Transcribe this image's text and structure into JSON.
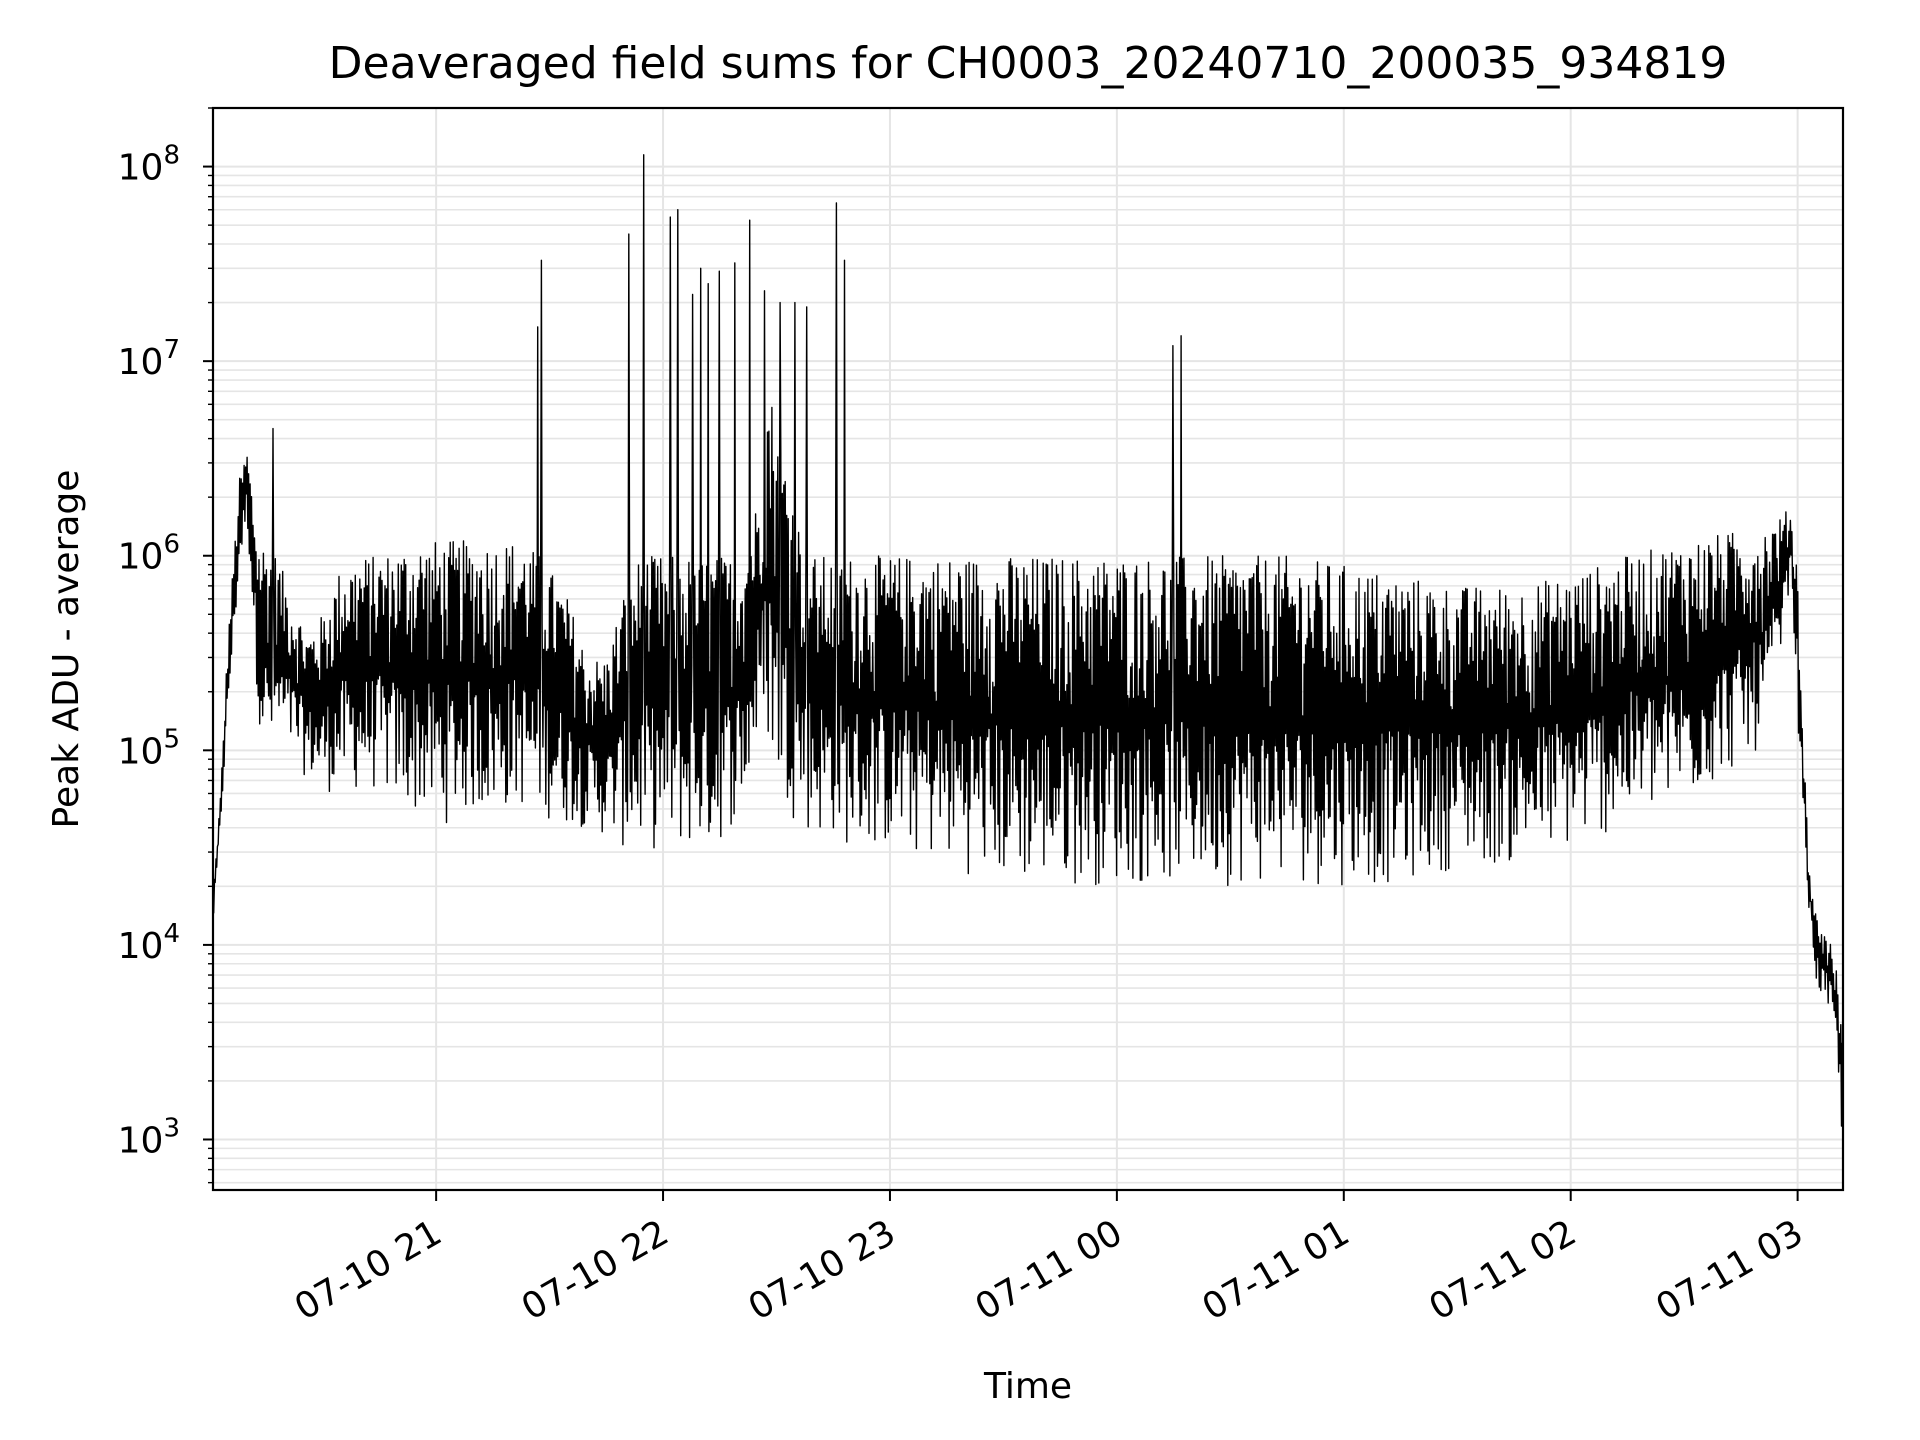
{
  "chart_data": {
    "type": "line",
    "title": "Deaveraged field sums for CH0003_20240710_200035_934819",
    "xlabel": "Time",
    "ylabel": "Peak ADU - average",
    "yscale": "log",
    "ylim": [
      550,
      200000000
    ],
    "xlim": [
      "2024-07-10 20:01",
      "2024-07-11 03:12"
    ],
    "grid": true,
    "line_color": "#000000",
    "grid_color": "#e5e5e5",
    "x_ticks": [
      {
        "value": "2024-07-10 21:00",
        "label": "07-10 21"
      },
      {
        "value": "2024-07-10 22:00",
        "label": "07-10 22"
      },
      {
        "value": "2024-07-10 23:00",
        "label": "07-10 23"
      },
      {
        "value": "2024-07-11 00:00",
        "label": "07-11 00"
      },
      {
        "value": "2024-07-11 01:00",
        "label": "07-11 01"
      },
      {
        "value": "2024-07-11 02:00",
        "label": "07-11 02"
      },
      {
        "value": "2024-07-11 03:00",
        "label": "07-11 03"
      }
    ],
    "y_ticks": [
      {
        "value": 1000,
        "base": "10",
        "exp": "3"
      },
      {
        "value": 10000,
        "base": "10",
        "exp": "4"
      },
      {
        "value": 100000,
        "base": "10",
        "exp": "5"
      },
      {
        "value": 1000000,
        "base": "10",
        "exp": "6"
      },
      {
        "value": 10000000,
        "base": "10",
        "exp": "7"
      },
      {
        "value": 100000000,
        "base": "10",
        "exp": "8"
      }
    ],
    "series": [
      {
        "x": [
          "2024-07-10 20:01",
          "2024-07-10 20:03",
          "2024-07-10 20:05",
          "2024-07-10 20:08",
          "2024-07-10 20:10",
          "2024-07-10 20:13",
          "2024-07-10 20:15",
          "2024-07-10 20:18",
          "2024-07-10 20:22",
          "2024-07-10 20:26",
          "2024-07-10 20:30",
          "2024-07-10 20:35",
          "2024-07-10 20:40",
          "2024-07-10 20:45",
          "2024-07-10 20:50",
          "2024-07-10 20:55",
          "2024-07-10 21:00",
          "2024-07-10 21:08",
          "2024-07-10 21:15",
          "2024-07-10 21:22",
          "2024-07-10 21:28",
          "2024-07-10 21:35",
          "2024-07-10 21:40",
          "2024-07-10 21:45",
          "2024-07-10 21:50",
          "2024-07-10 21:54",
          "2024-07-10 21:58",
          "2024-07-10 22:02",
          "2024-07-10 22:06",
          "2024-07-10 22:10",
          "2024-07-10 22:14",
          "2024-07-10 22:18",
          "2024-07-10 22:22",
          "2024-07-10 22:25",
          "2024-07-10 22:28",
          "2024-07-10 22:30",
          "2024-07-10 22:33",
          "2024-07-10 22:36",
          "2024-07-10 22:40",
          "2024-07-10 22:45",
          "2024-07-10 22:50",
          "2024-07-10 22:55",
          "2024-07-10 23:00",
          "2024-07-10 23:15",
          "2024-07-10 23:30",
          "2024-07-10 23:45",
          "2024-07-11 00:00",
          "2024-07-11 00:15",
          "2024-07-11 00:30",
          "2024-07-11 00:45",
          "2024-07-11 01:00",
          "2024-07-11 01:15",
          "2024-07-11 01:30",
          "2024-07-11 01:45",
          "2024-07-11 02:00",
          "2024-07-11 02:15",
          "2024-07-11 02:30",
          "2024-07-11 02:40",
          "2024-07-11 02:50",
          "2024-07-11 02:56",
          "2024-07-11 02:58",
          "2024-07-11 03:00",
          "2024-07-11 03:01",
          "2024-07-11 03:03",
          "2024-07-11 03:05",
          "2024-07-11 03:07",
          "2024-07-11 03:09",
          "2024-07-11 03:10",
          "2024-07-11 03:11",
          "2024-07-11 03:12"
        ],
        "low": [
          12000,
          40000,
          150000,
          800000,
          1500000,
          150000,
          80000,
          100000,
          90000,
          70000,
          60000,
          60000,
          60000,
          60000,
          50000,
          45000,
          40000,
          45000,
          45000,
          50000,
          45000,
          40000,
          40000,
          35000,
          30000,
          30000,
          30000,
          30000,
          30000,
          30000,
          30000,
          40000,
          50000,
          100000,
          100000,
          60000,
          50000,
          40000,
          35000,
          35000,
          30000,
          30000,
          30000,
          25000,
          20000,
          20000,
          20000,
          20000,
          20000,
          20000,
          20000,
          20000,
          25000,
          25000,
          30000,
          40000,
          50000,
          70000,
          100000,
          300000,
          800000,
          150000,
          60000,
          15000,
          6000,
          5000,
          4000,
          3000,
          1500,
          900
        ],
        "high": [
          18000,
          60000,
          400000,
          2500000,
          3500000,
          1200000,
          1200000,
          1000000,
          600000,
          400000,
          500000,
          900000,
          1000000,
          1000000,
          1100000,
          1200000,
          1200000,
          1200000,
          1200000,
          1200000,
          1000000,
          600000,
          300000,
          300000,
          700000,
          1000000,
          1000000,
          1000000,
          1000000,
          1000000,
          1000000,
          1000000,
          1200000,
          2000000,
          8000000,
          5000000,
          3000000,
          1500000,
          1000000,
          1000000,
          1000000,
          1000000,
          1000000,
          1000000,
          1000000,
          1000000,
          1000000,
          1000000,
          1000000,
          1000000,
          900000,
          800000,
          700000,
          700000,
          800000,
          1000000,
          1200000,
          1300000,
          1400000,
          1600000,
          1800000,
          900000,
          200000,
          25000,
          14000,
          12000,
          10000,
          8000,
          6000,
          3000
        ],
        "spikes": [
          {
            "x": "2024-07-10 20:17",
            "y": 4500000
          },
          {
            "x": "2024-07-10 21:27",
            "y": 15000000
          },
          {
            "x": "2024-07-10 21:28",
            "y": 33000000
          },
          {
            "x": "2024-07-10 21:51",
            "y": 45000000
          },
          {
            "x": "2024-07-10 21:55",
            "y": 115000000
          },
          {
            "x": "2024-07-10 22:02",
            "y": 55000000
          },
          {
            "x": "2024-07-10 22:04",
            "y": 60000000
          },
          {
            "x": "2024-07-10 22:08",
            "y": 22000000
          },
          {
            "x": "2024-07-10 22:10",
            "y": 30000000
          },
          {
            "x": "2024-07-10 22:12",
            "y": 25000000
          },
          {
            "x": "2024-07-10 22:15",
            "y": 29000000
          },
          {
            "x": "2024-07-10 22:19",
            "y": 32000000
          },
          {
            "x": "2024-07-10 22:23",
            "y": 53000000
          },
          {
            "x": "2024-07-10 22:27",
            "y": 23000000
          },
          {
            "x": "2024-07-10 22:31",
            "y": 20000000
          },
          {
            "x": "2024-07-10 22:35",
            "y": 20000000
          },
          {
            "x": "2024-07-10 22:38",
            "y": 19000000
          },
          {
            "x": "2024-07-10 22:46",
            "y": 65000000
          },
          {
            "x": "2024-07-10 22:48",
            "y": 33000000
          },
          {
            "x": "2024-07-11 00:15",
            "y": 12000000
          },
          {
            "x": "2024-07-11 00:17",
            "y": 13500000
          }
        ]
      }
    ]
  }
}
